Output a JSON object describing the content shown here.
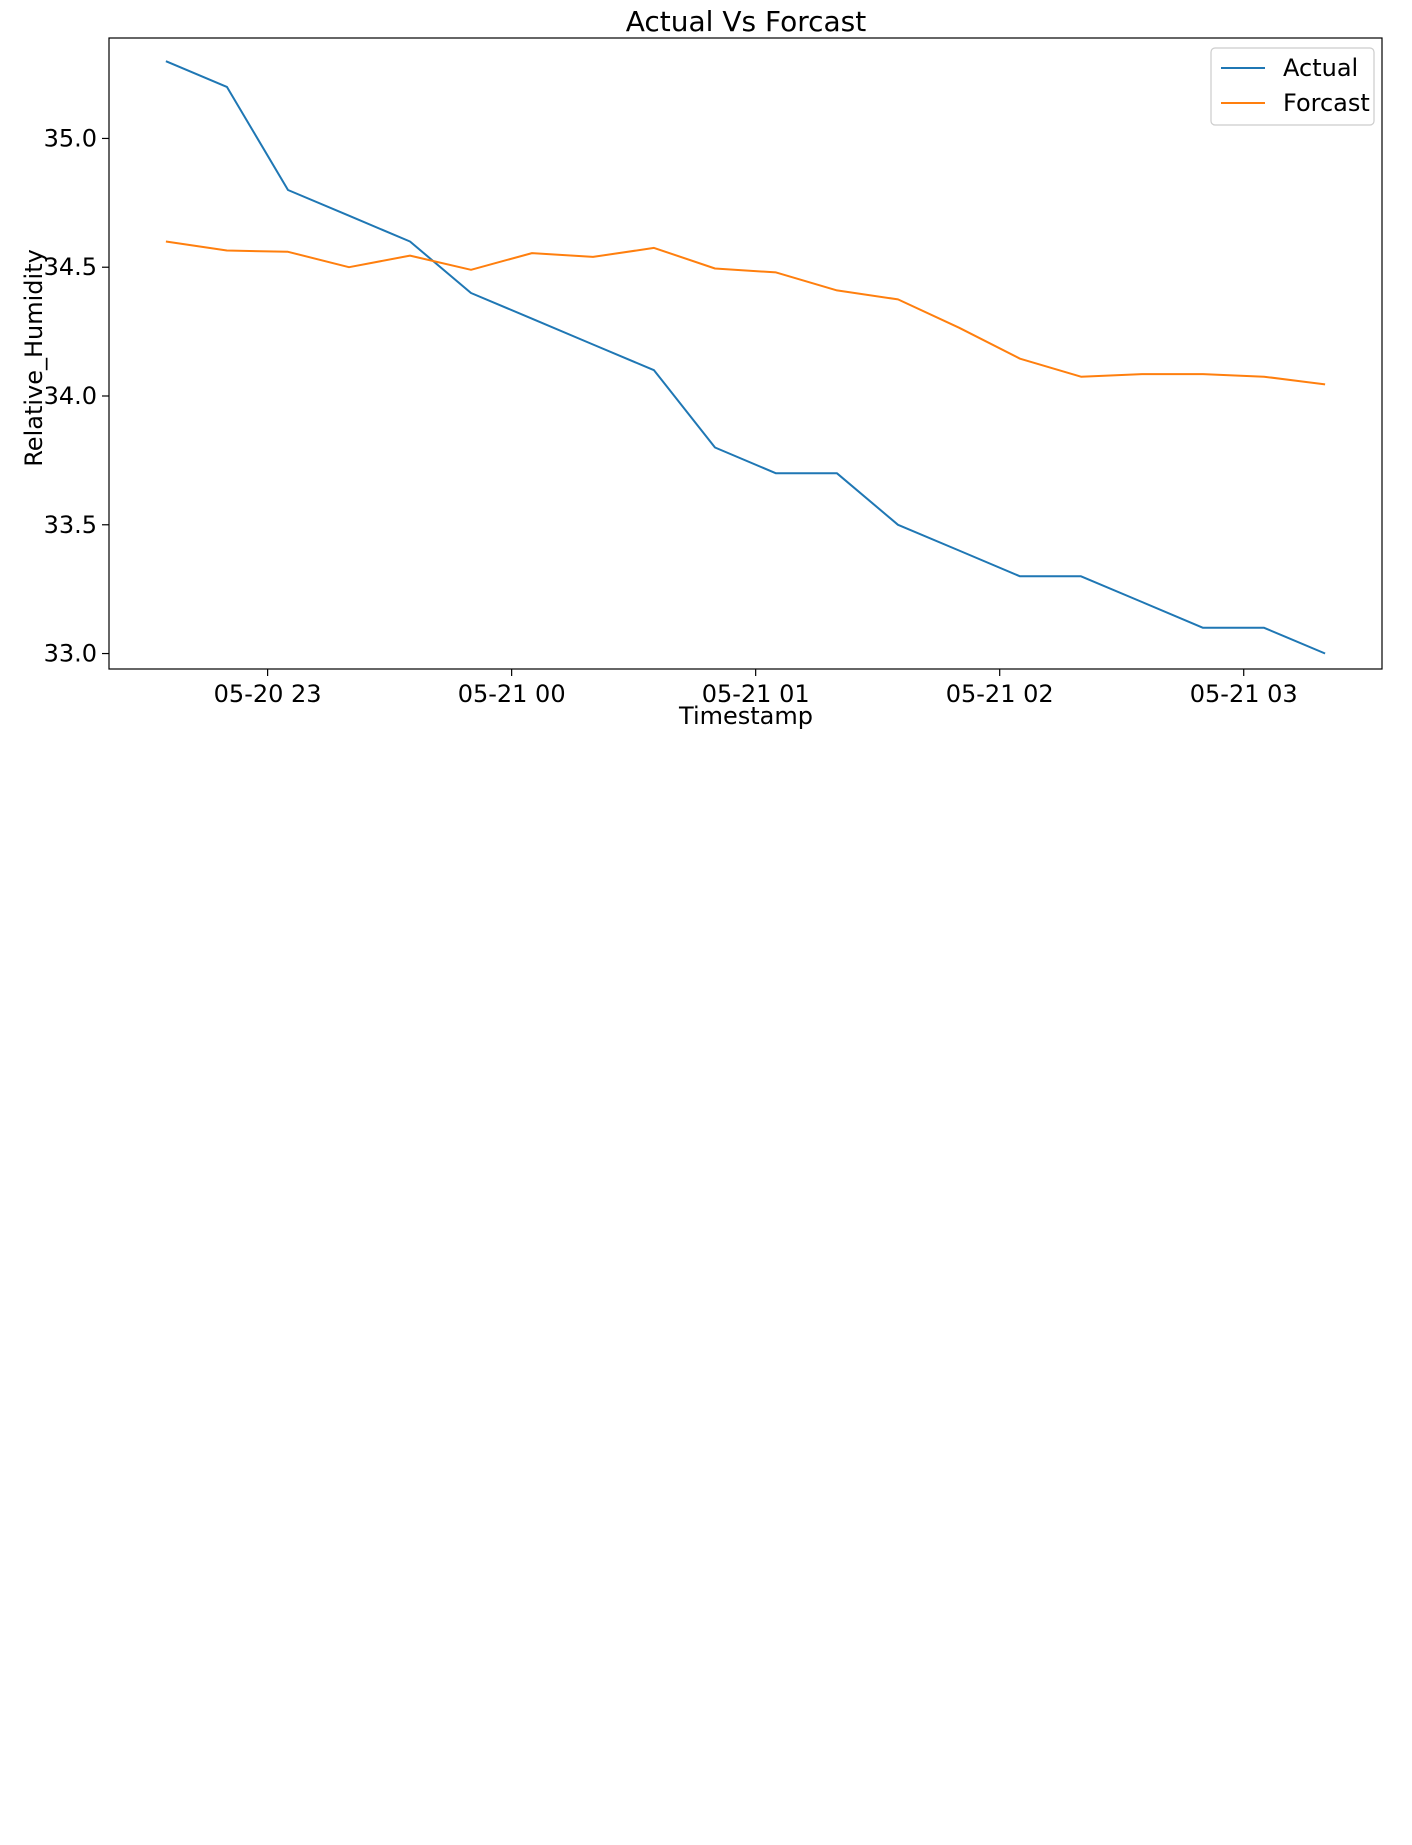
{
  "chart_data": {
    "type": "line",
    "title": "Actual Vs Forcast",
    "xlabel": "Timestamp",
    "ylabel": "Relative_Humidity",
    "x": [
      "2021-05-20 22:35",
      "2021-05-20 22:50",
      "2021-05-20 23:05",
      "2021-05-20 23:20",
      "2021-05-20 23:35",
      "2021-05-20 23:50",
      "2021-05-21 00:05",
      "2021-05-21 00:20",
      "2021-05-21 00:35",
      "2021-05-21 00:50",
      "2021-05-21 01:05",
      "2021-05-21 01:20",
      "2021-05-21 01:35",
      "2021-05-21 01:50",
      "2021-05-21 02:05",
      "2021-05-21 02:20",
      "2021-05-21 02:35",
      "2021-05-21 02:50",
      "2021-05-21 03:05",
      "2021-05-21 03:20"
    ],
    "xticks": [
      {
        "label": "05-20 23",
        "value": "2021-05-20 23:00"
      },
      {
        "label": "05-21 00",
        "value": "2021-05-21 00:00"
      },
      {
        "label": "05-21 01",
        "value": "2021-05-21 01:00"
      },
      {
        "label": "05-21 02",
        "value": "2021-05-21 02:00"
      },
      {
        "label": "05-21 03",
        "value": "2021-05-21 03:00"
      }
    ],
    "xlim": [
      "2021-05-20 22:21",
      "2021-05-21 03:34"
    ],
    "yticks": [
      "33.0",
      "33.5",
      "34.0",
      "34.5",
      "35.0"
    ],
    "ylim": [
      32.94,
      35.39
    ],
    "grid": false,
    "legend_position": "top-right",
    "series": [
      {
        "name": "Actual",
        "color": "#1f77b4",
        "values": [
          35.3,
          35.2,
          34.8,
          34.7,
          34.6,
          34.4,
          34.3,
          34.2,
          34.1,
          33.8,
          33.7,
          33.7,
          33.5,
          33.4,
          33.3,
          33.3,
          33.2,
          33.1,
          33.1,
          33.0
        ]
      },
      {
        "name": "Forcast",
        "color": "#ff7f0e",
        "values": [
          34.6,
          34.565,
          34.56,
          34.5,
          34.545,
          34.49,
          34.555,
          34.54,
          34.575,
          34.495,
          34.48,
          34.41,
          34.375,
          34.265,
          34.145,
          34.075,
          34.085,
          34.085,
          34.075,
          34.045
        ]
      }
    ]
  }
}
